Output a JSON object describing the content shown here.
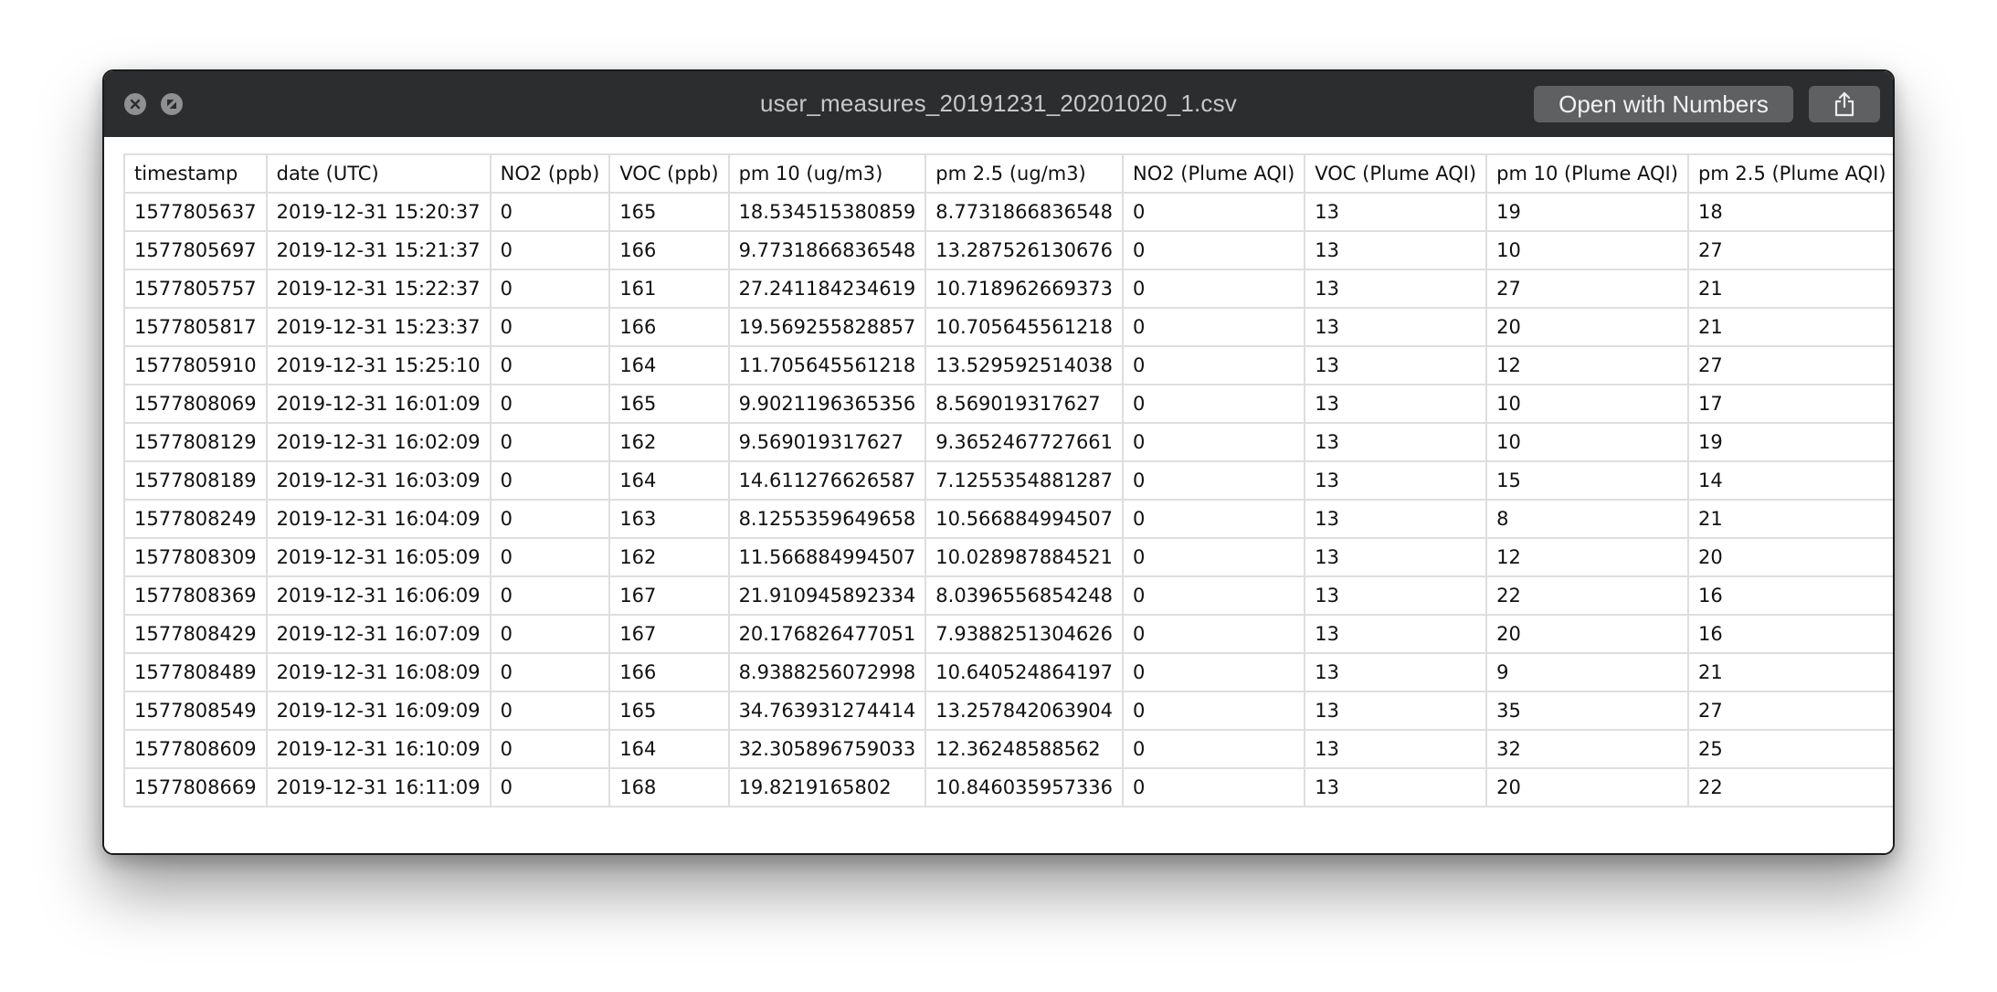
{
  "window": {
    "title": "user_measures_20191231_20201020_1.csv",
    "open_button_label": "Open with Numbers",
    "close_icon": "close-icon",
    "zoom_icon": "fullscreen-icon",
    "share_icon": "share-icon"
  },
  "table": {
    "columns": [
      "timestamp",
      "date (UTC)",
      "NO2 (ppb)",
      "VOC (ppb)",
      "pm 10 (ug/m3)",
      "pm 2.5 (ug/m3)",
      "NO2 (Plume AQI)",
      "VOC (Plume AQI)",
      "pm 10 (Plume AQI)",
      "pm 2.5 (Plume AQI)"
    ],
    "rows": [
      [
        "1577805637",
        "2019-12-31 15:20:37",
        "0",
        "165",
        "18.534515380859",
        "8.7731866836548",
        "0",
        "13",
        "19",
        "18"
      ],
      [
        "1577805697",
        "2019-12-31 15:21:37",
        "0",
        "166",
        "9.7731866836548",
        "13.287526130676",
        "0",
        "13",
        "10",
        "27"
      ],
      [
        "1577805757",
        "2019-12-31 15:22:37",
        "0",
        "161",
        "27.241184234619",
        "10.718962669373",
        "0",
        "13",
        "27",
        "21"
      ],
      [
        "1577805817",
        "2019-12-31 15:23:37",
        "0",
        "166",
        "19.569255828857",
        "10.705645561218",
        "0",
        "13",
        "20",
        "21"
      ],
      [
        "1577805910",
        "2019-12-31 15:25:10",
        "0",
        "164",
        "11.705645561218",
        "13.529592514038",
        "0",
        "13",
        "12",
        "27"
      ],
      [
        "1577808069",
        "2019-12-31 16:01:09",
        "0",
        "165",
        "9.9021196365356",
        "8.569019317627",
        "0",
        "13",
        "10",
        "17"
      ],
      [
        "1577808129",
        "2019-12-31 16:02:09",
        "0",
        "162",
        "9.569019317627",
        "9.3652467727661",
        "0",
        "13",
        "10",
        "19"
      ],
      [
        "1577808189",
        "2019-12-31 16:03:09",
        "0",
        "164",
        "14.611276626587",
        "7.1255354881287",
        "0",
        "13",
        "15",
        "14"
      ],
      [
        "1577808249",
        "2019-12-31 16:04:09",
        "0",
        "163",
        "8.1255359649658",
        "10.566884994507",
        "0",
        "13",
        "8",
        "21"
      ],
      [
        "1577808309",
        "2019-12-31 16:05:09",
        "0",
        "162",
        "11.566884994507",
        "10.028987884521",
        "0",
        "13",
        "12",
        "20"
      ],
      [
        "1577808369",
        "2019-12-31 16:06:09",
        "0",
        "167",
        "21.910945892334",
        "8.0396556854248",
        "0",
        "13",
        "22",
        "16"
      ],
      [
        "1577808429",
        "2019-12-31 16:07:09",
        "0",
        "167",
        "20.176826477051",
        "7.9388251304626",
        "0",
        "13",
        "20",
        "16"
      ],
      [
        "1577808489",
        "2019-12-31 16:08:09",
        "0",
        "166",
        "8.9388256072998",
        "10.640524864197",
        "0",
        "13",
        "9",
        "21"
      ],
      [
        "1577808549",
        "2019-12-31 16:09:09",
        "0",
        "165",
        "34.763931274414",
        "13.257842063904",
        "0",
        "13",
        "35",
        "27"
      ],
      [
        "1577808609",
        "2019-12-31 16:10:09",
        "0",
        "164",
        "32.305896759033",
        "12.36248588562",
        "0",
        "13",
        "32",
        "25"
      ],
      [
        "1577808669",
        "2019-12-31 16:11:09",
        "0",
        "168",
        "19.8219165802",
        "10.846035957336",
        "0",
        "13",
        "20",
        "22"
      ]
    ]
  }
}
